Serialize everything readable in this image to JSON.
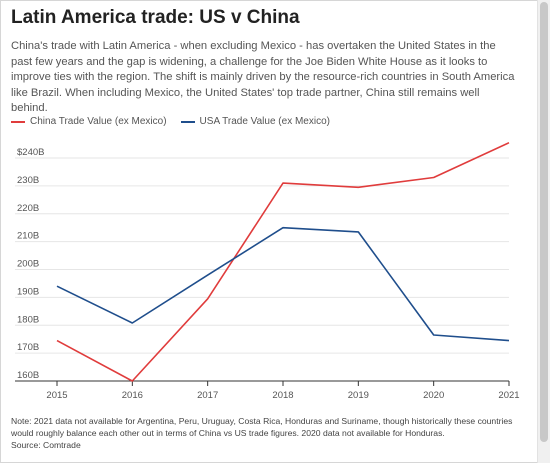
{
  "title": "Latin America trade: US v China",
  "subtitle": "China's trade with Latin America - when excluding Mexico - has overtaken the United States in the past few years and the gap is widening, a challenge for the Joe Biden White House as it looks to improve ties with the region. The shift is mainly driven by the resource-rich countries in South America like Brazil. When including Mexico, the United States' top trade partner, China still remains well behind.",
  "colors": {
    "china": "#e03c3c",
    "usa": "#1f4e8c",
    "grid": "#e6e6e6",
    "axis": "#333333"
  },
  "chart_data": {
    "type": "line",
    "x": [
      2015,
      2016,
      2017,
      2018,
      2019,
      2020,
      2021
    ],
    "x_tick_labels": [
      "2015",
      "2016",
      "2017",
      "2018",
      "2019",
      "2020",
      "2021"
    ],
    "y_ticks": [
      160,
      170,
      180,
      190,
      200,
      210,
      220,
      230,
      240
    ],
    "y_tick_labels": [
      "160B",
      "170B",
      "180B",
      "190B",
      "200B",
      "210B",
      "220B",
      "230B",
      "$240B"
    ],
    "ylim": [
      160,
      240
    ],
    "grid": true,
    "legend": "top-left",
    "series": [
      {
        "name": "China Trade Value (ex Mexico)",
        "color": "#e03c3c",
        "values": [
          174.5,
          160,
          189.5,
          231,
          229.5,
          233,
          245.5
        ]
      },
      {
        "name": "USA Trade Value (ex Mexico)",
        "color": "#1f4e8c",
        "values": [
          194,
          180.8,
          198,
          215,
          213.5,
          176.5,
          174.5
        ]
      }
    ]
  },
  "note": {
    "line1": "Note: 2021 data not available for Argentina, Peru, Uruguay, Costa Rica, Honduras and Suriname, though historically these countries",
    "line2": "would roughly balance each other out in terms of China vs US trade figures. 2020 data not available for Honduras.",
    "source": "Source: Comtrade"
  }
}
